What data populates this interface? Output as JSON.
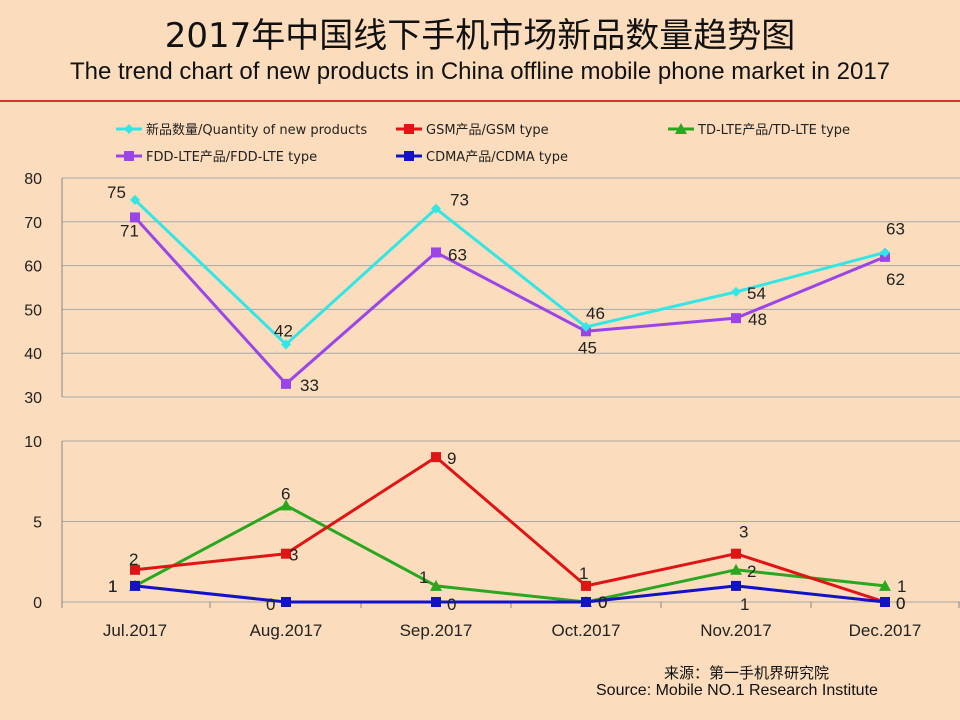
{
  "title_cn": "2017年中国线下手机市场新品数量趋势图",
  "title_en": "The trend chart of new products in China offline mobile phone market in 2017",
  "source_cn": "来源：第一手机界研究院",
  "source_en": "Source: Mobile NO.1 Research Institute",
  "colors": {
    "background": "#fbdcbc",
    "accent_rule": "#d9342b"
  },
  "chart_data": [
    {
      "type": "line",
      "panel": "upper",
      "x": [
        "Jul.2017",
        "Aug.2017",
        "Sep.2017",
        "Oct.2017",
        "Nov.2017",
        "Dec.2017"
      ],
      "ylim": [
        30,
        80
      ],
      "yticks": [
        30,
        40,
        50,
        60,
        70,
        80
      ],
      "grid": true,
      "legend_position": "top",
      "series": [
        {
          "name": "新品数量/Quantity of new products",
          "color": "#33e6e6",
          "marker": "diamond",
          "values": [
            75,
            42,
            73,
            46,
            54,
            63
          ]
        },
        {
          "name": "FDD-LTE产品/FDD-LTE type",
          "color": "#9b45e8",
          "marker": "square",
          "values": [
            71,
            33,
            63,
            45,
            48,
            62
          ]
        }
      ]
    },
    {
      "type": "line",
      "panel": "lower",
      "x": [
        "Jul.2017",
        "Aug.2017",
        "Sep.2017",
        "Oct.2017",
        "Nov.2017",
        "Dec.2017"
      ],
      "ylim": [
        0,
        10
      ],
      "yticks": [
        0,
        5,
        10
      ],
      "grid": true,
      "legend_position": "top",
      "series": [
        {
          "name": "GSM产品/GSM type",
          "color": "#e01414",
          "marker": "square",
          "values": [
            2,
            3,
            9,
            1,
            3,
            0
          ]
        },
        {
          "name": "TD-LTE产品/TD-LTE type",
          "color": "#2aa61f",
          "marker": "triangle",
          "values": [
            1,
            6,
            1,
            0,
            2,
            1
          ]
        },
        {
          "name": "CDMA产品/CDMA type",
          "color": "#1212c8",
          "marker": "square",
          "values": [
            1,
            0,
            0,
            0,
            1,
            0
          ]
        }
      ]
    }
  ]
}
